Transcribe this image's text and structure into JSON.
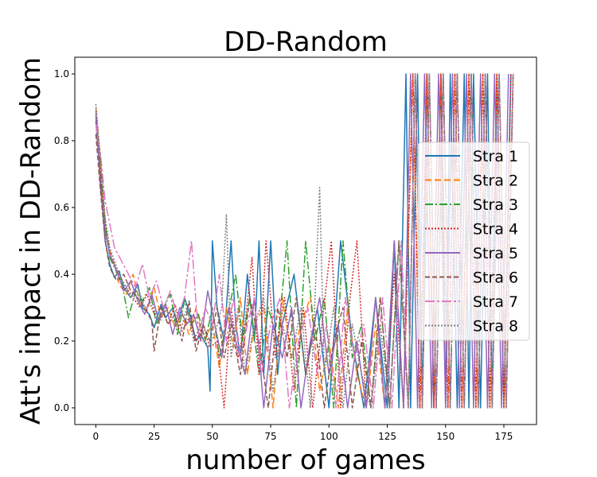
{
  "chart_data": {
    "type": "line",
    "title": "DD-Random",
    "xlabel": "number of games",
    "ylabel": "Att's impact in DD-Random",
    "xlim": [
      -9,
      189
    ],
    "ylim": [
      -0.05,
      1.05
    ],
    "xticks": [
      0,
      25,
      50,
      75,
      100,
      125,
      150,
      175
    ],
    "yticks": [
      0.0,
      0.2,
      0.4,
      0.6,
      0.8,
      1.0
    ],
    "xtick_labels": [
      "0",
      "25",
      "50",
      "75",
      "100",
      "125",
      "150",
      "175"
    ],
    "ytick_labels": [
      "0.0",
      "0.2",
      "0.4",
      "0.6",
      "0.8",
      "1.0"
    ],
    "grid": false,
    "legend": "right",
    "series": [
      {
        "name": "Stra 1",
        "color": "#1f77b4",
        "dash": "solid",
        "x": [
          0,
          2,
          4,
          6,
          8,
          10,
          12,
          15,
          18,
          20,
          23,
          25,
          28,
          30,
          33,
          35,
          38,
          40,
          43,
          45,
          48,
          49,
          50,
          52,
          55,
          58,
          60,
          62,
          65,
          68,
          70,
          72,
          75,
          78,
          80,
          85,
          90,
          95,
          100,
          105,
          110,
          115,
          120,
          125,
          128,
          130,
          133,
          135,
          138,
          140,
          142,
          145,
          148,
          150,
          152,
          155,
          158,
          160,
          162,
          165,
          168,
          170,
          172,
          175,
          178
        ],
        "y": [
          0.86,
          0.68,
          0.5,
          0.43,
          0.39,
          0.41,
          0.36,
          0.33,
          0.37,
          0.3,
          0.28,
          0.24,
          0.31,
          0.27,
          0.3,
          0.25,
          0.33,
          0.29,
          0.2,
          0.22,
          0.18,
          0.05,
          0.5,
          0.3,
          0.2,
          0.5,
          0.25,
          0.15,
          0.4,
          0.2,
          0.5,
          0.1,
          0.5,
          0.1,
          0.25,
          0.4,
          0.1,
          0.3,
          0.0,
          0.5,
          0.2,
          0.0,
          0.33,
          0.0,
          0.5,
          0.0,
          1.0,
          0.0,
          1.0,
          0.0,
          1.0,
          0.0,
          1.0,
          0.0,
          1.0,
          0.0,
          1.0,
          0.0,
          1.0,
          0.0,
          1.0,
          0.0,
          1.0,
          0.0,
          1.0
        ]
      },
      {
        "name": "Stra 2",
        "color": "#ff7f0e",
        "dash": "8 4",
        "x": [
          0,
          2,
          4,
          6,
          8,
          10,
          13,
          16,
          19,
          22,
          25,
          28,
          31,
          34,
          37,
          40,
          43,
          46,
          50,
          53,
          56,
          59,
          62,
          65,
          68,
          72,
          76,
          80,
          84,
          88,
          92,
          96,
          100,
          104,
          108,
          112,
          116,
          120,
          124,
          128,
          132,
          136,
          139,
          142,
          145,
          148,
          151,
          154,
          157,
          160,
          163,
          166,
          169,
          172,
          175,
          179
        ],
        "y": [
          0.9,
          0.74,
          0.55,
          0.47,
          0.43,
          0.37,
          0.34,
          0.4,
          0.31,
          0.29,
          0.36,
          0.27,
          0.3,
          0.24,
          0.28,
          0.22,
          0.3,
          0.2,
          0.25,
          0.12,
          0.3,
          0.18,
          0.33,
          0.1,
          0.25,
          0.3,
          0.0,
          0.33,
          0.15,
          0.25,
          0.33,
          0.05,
          0.2,
          0.0,
          0.3,
          0.1,
          0.0,
          0.25,
          0.0,
          0.5,
          0.0,
          1.0,
          0.0,
          1.0,
          0.0,
          1.0,
          0.0,
          1.0,
          0.0,
          1.0,
          0.0,
          1.0,
          0.0,
          1.0,
          0.0,
          1.0
        ]
      },
      {
        "name": "Stra 3",
        "color": "#2ca02c",
        "dash": "10 3 2 3",
        "x": [
          0,
          2,
          4,
          6,
          8,
          11,
          14,
          17,
          20,
          23,
          26,
          29,
          32,
          35,
          38,
          41,
          44,
          47,
          50,
          53,
          56,
          60,
          63,
          66,
          70,
          74,
          78,
          82,
          86,
          90,
          94,
          98,
          102,
          106,
          110,
          114,
          118,
          122,
          126,
          130,
          134,
          137,
          140,
          143,
          146,
          149,
          152,
          155,
          158,
          161,
          164,
          167,
          170,
          173,
          176,
          179
        ],
        "y": [
          0.88,
          0.72,
          0.56,
          0.45,
          0.42,
          0.38,
          0.27,
          0.35,
          0.32,
          0.36,
          0.25,
          0.3,
          0.34,
          0.22,
          0.32,
          0.25,
          0.28,
          0.2,
          0.3,
          0.15,
          0.25,
          0.4,
          0.2,
          0.33,
          0.1,
          0.3,
          0.2,
          0.5,
          0.0,
          0.5,
          0.2,
          0.33,
          0.0,
          0.5,
          0.15,
          0.25,
          0.0,
          0.33,
          0.0,
          0.5,
          0.0,
          1.0,
          0.0,
          1.0,
          0.0,
          1.0,
          0.0,
          1.0,
          0.0,
          1.0,
          0.0,
          1.0,
          0.0,
          1.0,
          0.0,
          1.0
        ]
      },
      {
        "name": "Stra 4",
        "color": "#d62728",
        "dash": "2 2",
        "x": [
          0,
          2,
          4,
          7,
          10,
          13,
          16,
          19,
          22,
          25,
          28,
          31,
          34,
          37,
          40,
          43,
          46,
          49,
          52,
          55,
          58,
          61,
          64,
          67,
          70,
          73,
          77,
          81,
          85,
          89,
          93,
          97,
          101,
          105,
          109,
          112,
          116,
          120,
          124,
          128,
          132,
          136,
          139,
          142,
          145,
          148,
          151,
          154,
          157,
          160,
          163,
          166,
          169,
          172,
          175,
          178
        ],
        "y": [
          0.87,
          0.7,
          0.52,
          0.44,
          0.4,
          0.36,
          0.33,
          0.3,
          0.34,
          0.28,
          0.3,
          0.25,
          0.31,
          0.23,
          0.27,
          0.2,
          0.25,
          0.18,
          0.2,
          0.0,
          0.3,
          0.15,
          0.25,
          0.45,
          0.1,
          0.5,
          0.15,
          0.33,
          0.05,
          0.3,
          0.0,
          0.25,
          0.5,
          0.0,
          0.33,
          0.5,
          0.0,
          0.33,
          0.0,
          0.4,
          0.0,
          1.0,
          0.0,
          1.0,
          0.0,
          1.0,
          0.0,
          1.0,
          0.0,
          1.0,
          0.0,
          1.0,
          0.0,
          1.0,
          0.0,
          1.0
        ]
      },
      {
        "name": "Stra 5",
        "color": "#9467bd",
        "dash": "solid",
        "x": [
          0,
          2,
          4,
          6,
          9,
          12,
          15,
          18,
          21,
          24,
          27,
          30,
          33,
          36,
          39,
          42,
          45,
          48,
          51,
          54,
          57,
          60,
          64,
          68,
          72,
          76,
          80,
          84,
          88,
          92,
          96,
          100,
          104,
          108,
          112,
          116,
          120,
          124,
          128,
          132,
          135,
          138,
          141,
          144,
          147,
          150,
          153,
          156,
          159,
          162,
          165,
          168,
          171,
          174,
          177
        ],
        "y": [
          0.89,
          0.66,
          0.53,
          0.46,
          0.41,
          0.35,
          0.38,
          0.32,
          0.28,
          0.34,
          0.26,
          0.31,
          0.22,
          0.3,
          0.25,
          0.28,
          0.2,
          0.35,
          0.25,
          0.15,
          0.3,
          0.2,
          0.1,
          0.33,
          0.0,
          0.25,
          0.15,
          0.3,
          0.0,
          0.2,
          0.33,
          0.1,
          0.25,
          0.0,
          0.2,
          0.0,
          0.33,
          0.0,
          0.5,
          0.0,
          1.0,
          0.0,
          1.0,
          0.0,
          1.0,
          0.0,
          1.0,
          0.0,
          1.0,
          0.0,
          1.0,
          0.0,
          1.0,
          0.0,
          1.0
        ]
      },
      {
        "name": "Stra 6",
        "color": "#8c564b",
        "dash": "6 3",
        "x": [
          0,
          2,
          4,
          6,
          9,
          12,
          15,
          18,
          21,
          24,
          25,
          28,
          31,
          34,
          37,
          40,
          43,
          46,
          49,
          52,
          55,
          58,
          62,
          66,
          70,
          74,
          78,
          82,
          86,
          90,
          94,
          98,
          102,
          106,
          110,
          114,
          118,
          122,
          126,
          130,
          134,
          137,
          140,
          143,
          146,
          149,
          152,
          155,
          158,
          161,
          164,
          167,
          170,
          173,
          176,
          179
        ],
        "y": [
          0.82,
          0.65,
          0.5,
          0.42,
          0.38,
          0.4,
          0.35,
          0.33,
          0.3,
          0.26,
          0.17,
          0.3,
          0.25,
          0.28,
          0.2,
          0.32,
          0.17,
          0.25,
          0.2,
          0.3,
          0.15,
          0.25,
          0.1,
          0.33,
          0.2,
          0.0,
          0.3,
          0.15,
          0.33,
          0.1,
          0.25,
          0.0,
          0.2,
          0.3,
          0.0,
          0.2,
          0.0,
          0.33,
          0.0,
          0.5,
          0.0,
          1.0,
          0.0,
          1.0,
          0.0,
          1.0,
          0.0,
          1.0,
          0.0,
          1.0,
          0.0,
          1.0,
          0.0,
          1.0,
          0.0,
          1.0
        ]
      },
      {
        "name": "Stra 7",
        "color": "#e377c2",
        "dash": "12 3 3 3",
        "x": [
          0,
          2,
          4,
          6,
          8,
          11,
          14,
          17,
          20,
          23,
          26,
          29,
          32,
          35,
          38,
          41,
          44,
          47,
          50,
          53,
          56,
          59,
          62,
          65,
          68,
          71,
          75,
          79,
          83,
          87,
          91,
          95,
          99,
          103,
          107,
          111,
          115,
          119,
          123,
          127,
          131,
          134,
          137,
          140,
          143,
          146,
          149,
          152,
          155,
          158,
          161,
          164,
          167,
          170,
          173,
          176,
          179
        ],
        "y": [
          0.85,
          0.76,
          0.62,
          0.55,
          0.48,
          0.44,
          0.4,
          0.36,
          0.43,
          0.33,
          0.38,
          0.3,
          0.35,
          0.27,
          0.33,
          0.5,
          0.22,
          0.3,
          0.25,
          0.4,
          0.2,
          0.33,
          0.15,
          0.25,
          0.33,
          0.1,
          0.25,
          0.33,
          0.0,
          0.2,
          0.3,
          0.1,
          0.25,
          0.0,
          0.33,
          0.15,
          0.25,
          0.0,
          0.33,
          0.0,
          0.5,
          0.0,
          1.0,
          0.0,
          1.0,
          0.0,
          1.0,
          0.0,
          1.0,
          0.0,
          1.0,
          0.0,
          1.0,
          0.0,
          1.0,
          0.0,
          1.0
        ]
      },
      {
        "name": "Stra 8",
        "color": "#7f7f7f",
        "dash": "2 2",
        "x": [
          0,
          2,
          4,
          6,
          9,
          12,
          15,
          18,
          21,
          24,
          27,
          30,
          33,
          36,
          39,
          42,
          45,
          48,
          51,
          54,
          56,
          58,
          61,
          64,
          68,
          72,
          76,
          80,
          84,
          88,
          92,
          96,
          98,
          102,
          106,
          110,
          114,
          118,
          122,
          126,
          130,
          134,
          137,
          140,
          143,
          146,
          149,
          152,
          155,
          158,
          161,
          164,
          167,
          170,
          173,
          176,
          179
        ],
        "y": [
          0.91,
          0.75,
          0.57,
          0.48,
          0.42,
          0.37,
          0.33,
          0.36,
          0.3,
          0.32,
          0.25,
          0.3,
          0.27,
          0.22,
          0.3,
          0.2,
          0.25,
          0.18,
          0.22,
          0.3,
          0.58,
          0.15,
          0.3,
          0.1,
          0.25,
          0.33,
          0.05,
          0.25,
          0.15,
          0.3,
          0.0,
          0.66,
          0.1,
          0.3,
          0.0,
          0.25,
          0.1,
          0.0,
          0.25,
          0.0,
          0.5,
          0.0,
          1.0,
          0.0,
          1.0,
          0.0,
          1.0,
          0.0,
          1.0,
          0.0,
          1.0,
          0.0,
          1.0,
          0.0,
          1.0,
          0.0,
          1.0
        ]
      }
    ]
  }
}
